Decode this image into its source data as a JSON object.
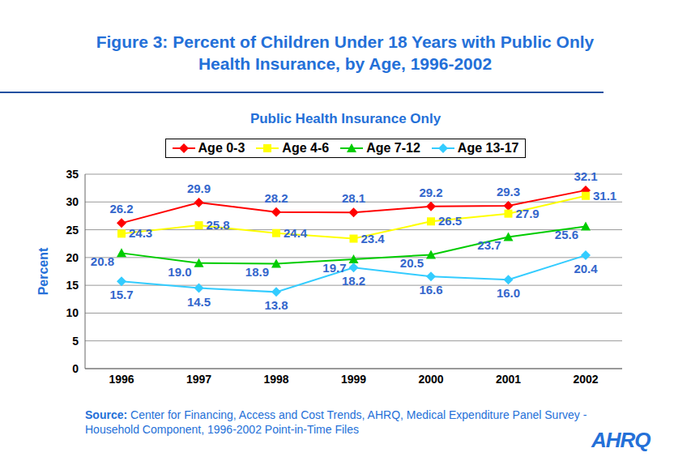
{
  "chart_data": {
    "type": "line",
    "title": "Figure 3: Percent of Children Under 18 Years with Public Only Health Insurance, by Age, 1996-2002",
    "subtitle": "Public Health Insurance Only",
    "y_label": "Percent",
    "source_label": "Source:",
    "source": "Center for Financing, Access and Cost Trends, AHRQ, Medical Expenditure Panel Survey - Household Component, 1996-2002 Point-in-Time Files",
    "logo": "AHRQ",
    "categories": [
      "1996",
      "1997",
      "1998",
      "1999",
      "2000",
      "2001",
      "2002"
    ],
    "series": [
      {
        "name": "Age 0-3",
        "color": "#ff0000",
        "marker": "diamond",
        "values": [
          26.2,
          29.9,
          28.2,
          28.1,
          29.2,
          29.3,
          32.1
        ]
      },
      {
        "name": "Age 4-6",
        "color": "#ffff00",
        "marker": "square",
        "values": [
          24.3,
          25.8,
          24.4,
          23.4,
          26.5,
          27.9,
          31.1
        ]
      },
      {
        "name": "Age 7-12",
        "color": "#00cc00",
        "marker": "triangle",
        "values": [
          20.8,
          19.0,
          18.9,
          19.7,
          20.5,
          23.7,
          25.6
        ]
      },
      {
        "name": "Age 13-17",
        "color": "#33ccff",
        "marker": "diamond",
        "values": [
          15.7,
          14.5,
          13.8,
          18.2,
          16.6,
          16.0,
          20.4
        ]
      }
    ],
    "ylim": [
      0,
      35
    ],
    "yticks": [
      0,
      5,
      10,
      15,
      20,
      25,
      30,
      35
    ],
    "grid": true,
    "legend": "top",
    "data_labels": true
  }
}
